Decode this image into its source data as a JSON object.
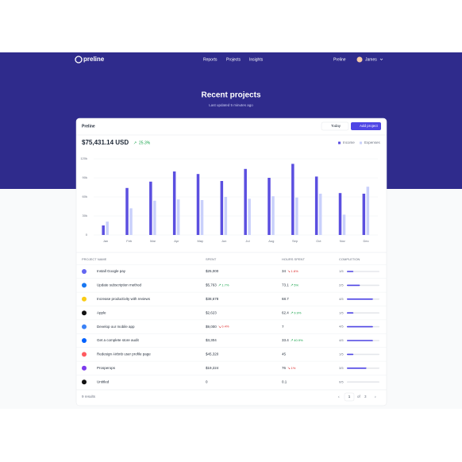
{
  "nav": {
    "logo": "preline",
    "links": [
      "Reports",
      "Projects",
      "Insights"
    ],
    "workspace": "Preline",
    "user": "James"
  },
  "header": {
    "title": "Recent projects",
    "subtitle": "Last updated 5 minutes ago"
  },
  "card": {
    "title": "Preline",
    "date_button": "Today",
    "add_button": "Add project",
    "total": "$75,431.14 USD",
    "total_change": "25.3%"
  },
  "chart_data": {
    "type": "bar",
    "categories": [
      "Jan",
      "Feb",
      "Mar",
      "Apr",
      "May",
      "Jun",
      "Jul",
      "Aug",
      "Sep",
      "Oct",
      "Nov",
      "Dec"
    ],
    "series": [
      {
        "name": "Income",
        "color": "#5b4fe0",
        "values": [
          15000,
          74000,
          84000,
          100000,
          96000,
          85000,
          104000,
          90000,
          112000,
          92000,
          66000,
          65000
        ]
      },
      {
        "name": "Expenses",
        "color": "#c9d0fb",
        "values": [
          21000,
          42000,
          54000,
          56000,
          55000,
          60000,
          57000,
          61000,
          59000,
          65000,
          32000,
          76000
        ]
      }
    ],
    "ylim": [
      0,
      120000
    ],
    "yticks": [
      0,
      {
        "value": 30000,
        "label": "30k"
      },
      {
        "value": 60000,
        "label": "60k"
      },
      {
        "value": 90000,
        "label": "90k"
      },
      {
        "value": 120000,
        "label": "120k"
      }
    ],
    "grid": true
  },
  "table": {
    "columns": [
      "PROJECT NAME",
      "SPENT",
      "HOURS SPENT",
      "COMPLETION"
    ],
    "rows": [
      {
        "name": "Install Google pay",
        "spent": "$25,000",
        "hours": "34",
        "hours_trend": "1.6%",
        "hours_dir": "down",
        "completion": "1/5"
      },
      {
        "name": "Update subscription method",
        "spent": "$5,763",
        "spent_trend": "1.7%",
        "spent_dir": "up",
        "hours": "73.1",
        "hours_trend": "5%",
        "hours_dir": "up",
        "completion": "2/5"
      },
      {
        "name": "Increase productivity with reviews",
        "spent": "$38,678",
        "hours": "68.7",
        "completion": "4/5"
      },
      {
        "name": "Apple",
        "spent": "$2,623",
        "hours": "62.4",
        "hours_trend": "9.9%",
        "hours_dir": "up",
        "completion": "1/5"
      },
      {
        "name": "Develop our mobile app",
        "spent": "$9,000",
        "spent_trend": "0.4%",
        "spent_dir": "down",
        "hours": "7",
        "completion": "4/5"
      },
      {
        "name": "Get a complete store audit",
        "spent": "$3,304",
        "hours": "33.4",
        "hours_trend": "40.9%",
        "hours_dir": "up",
        "completion": "4/5"
      },
      {
        "name": "Redesign Airbnb user profile page",
        "spent": "$45,320",
        "hours": "45",
        "completion": "1/5"
      },
      {
        "name": "Prosperops",
        "spent": "$19,224",
        "hours": "76",
        "hours_trend": "1%",
        "hours_dir": "down",
        "completion": "3/5"
      },
      {
        "name": "Untitled",
        "spent": "0",
        "hours": "0.1",
        "completion": "0/5"
      }
    ]
  },
  "footer": {
    "results": "9 results",
    "page": "1",
    "of": "of",
    "total_pages": "3"
  }
}
